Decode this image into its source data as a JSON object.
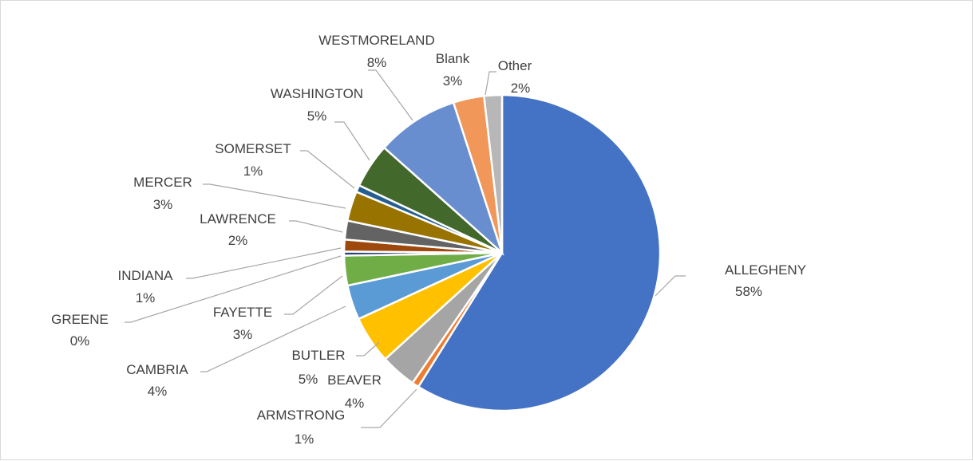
{
  "chart_data": {
    "type": "pie",
    "title": "",
    "start_angle_deg": 0,
    "direction": "clockwise",
    "slices": [
      {
        "name": "ALLEGHENY",
        "value": 58,
        "label": "58%",
        "color": "#4472c4"
      },
      {
        "name": "ARMSTRONG",
        "value": 0.7,
        "label": "1%",
        "color": "#ed7d31"
      },
      {
        "name": "BEAVER",
        "value": 3.6,
        "label": "4%",
        "color": "#a5a5a5"
      },
      {
        "name": "BUTLER",
        "value": 4.8,
        "label": "5%",
        "color": "#ffc000"
      },
      {
        "name": "CAMBRIA",
        "value": 3.5,
        "label": "4%",
        "color": "#5b9bd5"
      },
      {
        "name": "FAYETTE",
        "value": 3.0,
        "label": "3%",
        "color": "#70ad47"
      },
      {
        "name": "GREENE",
        "value": 0.4,
        "label": "0%",
        "color": "#264478"
      },
      {
        "name": "INDIANA",
        "value": 1.2,
        "label": "1%",
        "color": "#9e480e"
      },
      {
        "name": "LAWRENCE",
        "value": 1.9,
        "label": "2%",
        "color": "#636363"
      },
      {
        "name": "MERCER",
        "value": 3.0,
        "label": "3%",
        "color": "#997300"
      },
      {
        "name": "SOMERSET",
        "value": 0.7,
        "label": "1%",
        "color": "#255e91"
      },
      {
        "name": "WASHINGTON",
        "value": 4.5,
        "label": "5%",
        "color": "#43682b"
      },
      {
        "name": "WESTMORELAND",
        "value": 8.3,
        "label": "8%",
        "color": "#698ed0"
      },
      {
        "name": "Blank",
        "value": 3.1,
        "label": "3%",
        "color": "#f1975a"
      },
      {
        "name": "Other",
        "value": 1.8,
        "label": "2%",
        "color": "#b7b7b7"
      }
    ],
    "legend": "none",
    "data_labels": "outside-with-leader-lines"
  }
}
